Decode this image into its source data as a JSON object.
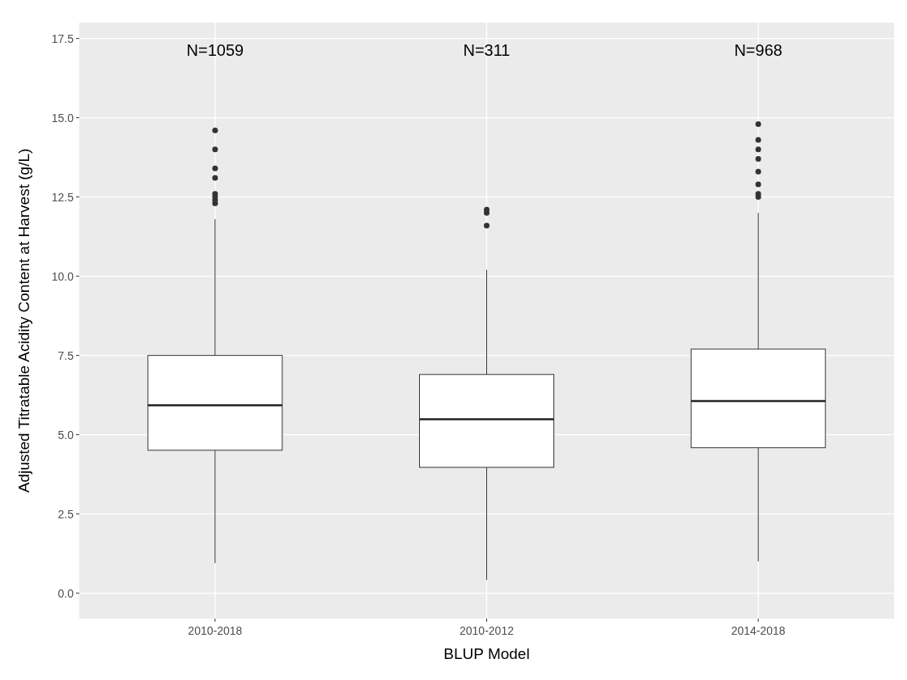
{
  "chart_data": {
    "type": "box",
    "xlabel": "BLUP Model",
    "ylabel": "Adjusted Titratable Acidity Content at Harvest (g/L)",
    "categories": [
      "2010-2018",
      "2010-2012",
      "2014-2018"
    ],
    "boxes": [
      {
        "low": 0.95,
        "q1": 4.51,
        "median": 5.93,
        "q3": 7.5,
        "high": 11.8,
        "outliers": [
          12.3,
          12.4,
          12.5,
          12.6,
          13.1,
          13.4,
          14.0,
          14.6
        ]
      },
      {
        "low": 0.42,
        "q1": 3.97,
        "median": 5.49,
        "q3": 6.9,
        "high": 10.2,
        "outliers": [
          11.6,
          12.0,
          12.1
        ]
      },
      {
        "low": 1.0,
        "q1": 4.59,
        "median": 6.06,
        "q3": 7.7,
        "high": 12.0,
        "outliers": [
          12.5,
          12.6,
          12.9,
          13.3,
          13.7,
          14.0,
          14.3,
          14.8
        ]
      }
    ],
    "ylim": [
      -0.8,
      18
    ],
    "yticks": [
      {
        "value": 0,
        "label": "0.0"
      },
      {
        "value": 2.5,
        "label": "2.5"
      },
      {
        "value": 5,
        "label": "5.0"
      },
      {
        "value": 7.5,
        "label": "7.5"
      },
      {
        "value": 10,
        "label": "10.0"
      },
      {
        "value": 12.5,
        "label": "12.5"
      },
      {
        "value": 15,
        "label": "15.0"
      },
      {
        "value": 17.5,
        "label": "17.5"
      }
    ],
    "grid": true,
    "annotations": [
      "N=1059",
      "N=311",
      "N=968"
    ]
  }
}
